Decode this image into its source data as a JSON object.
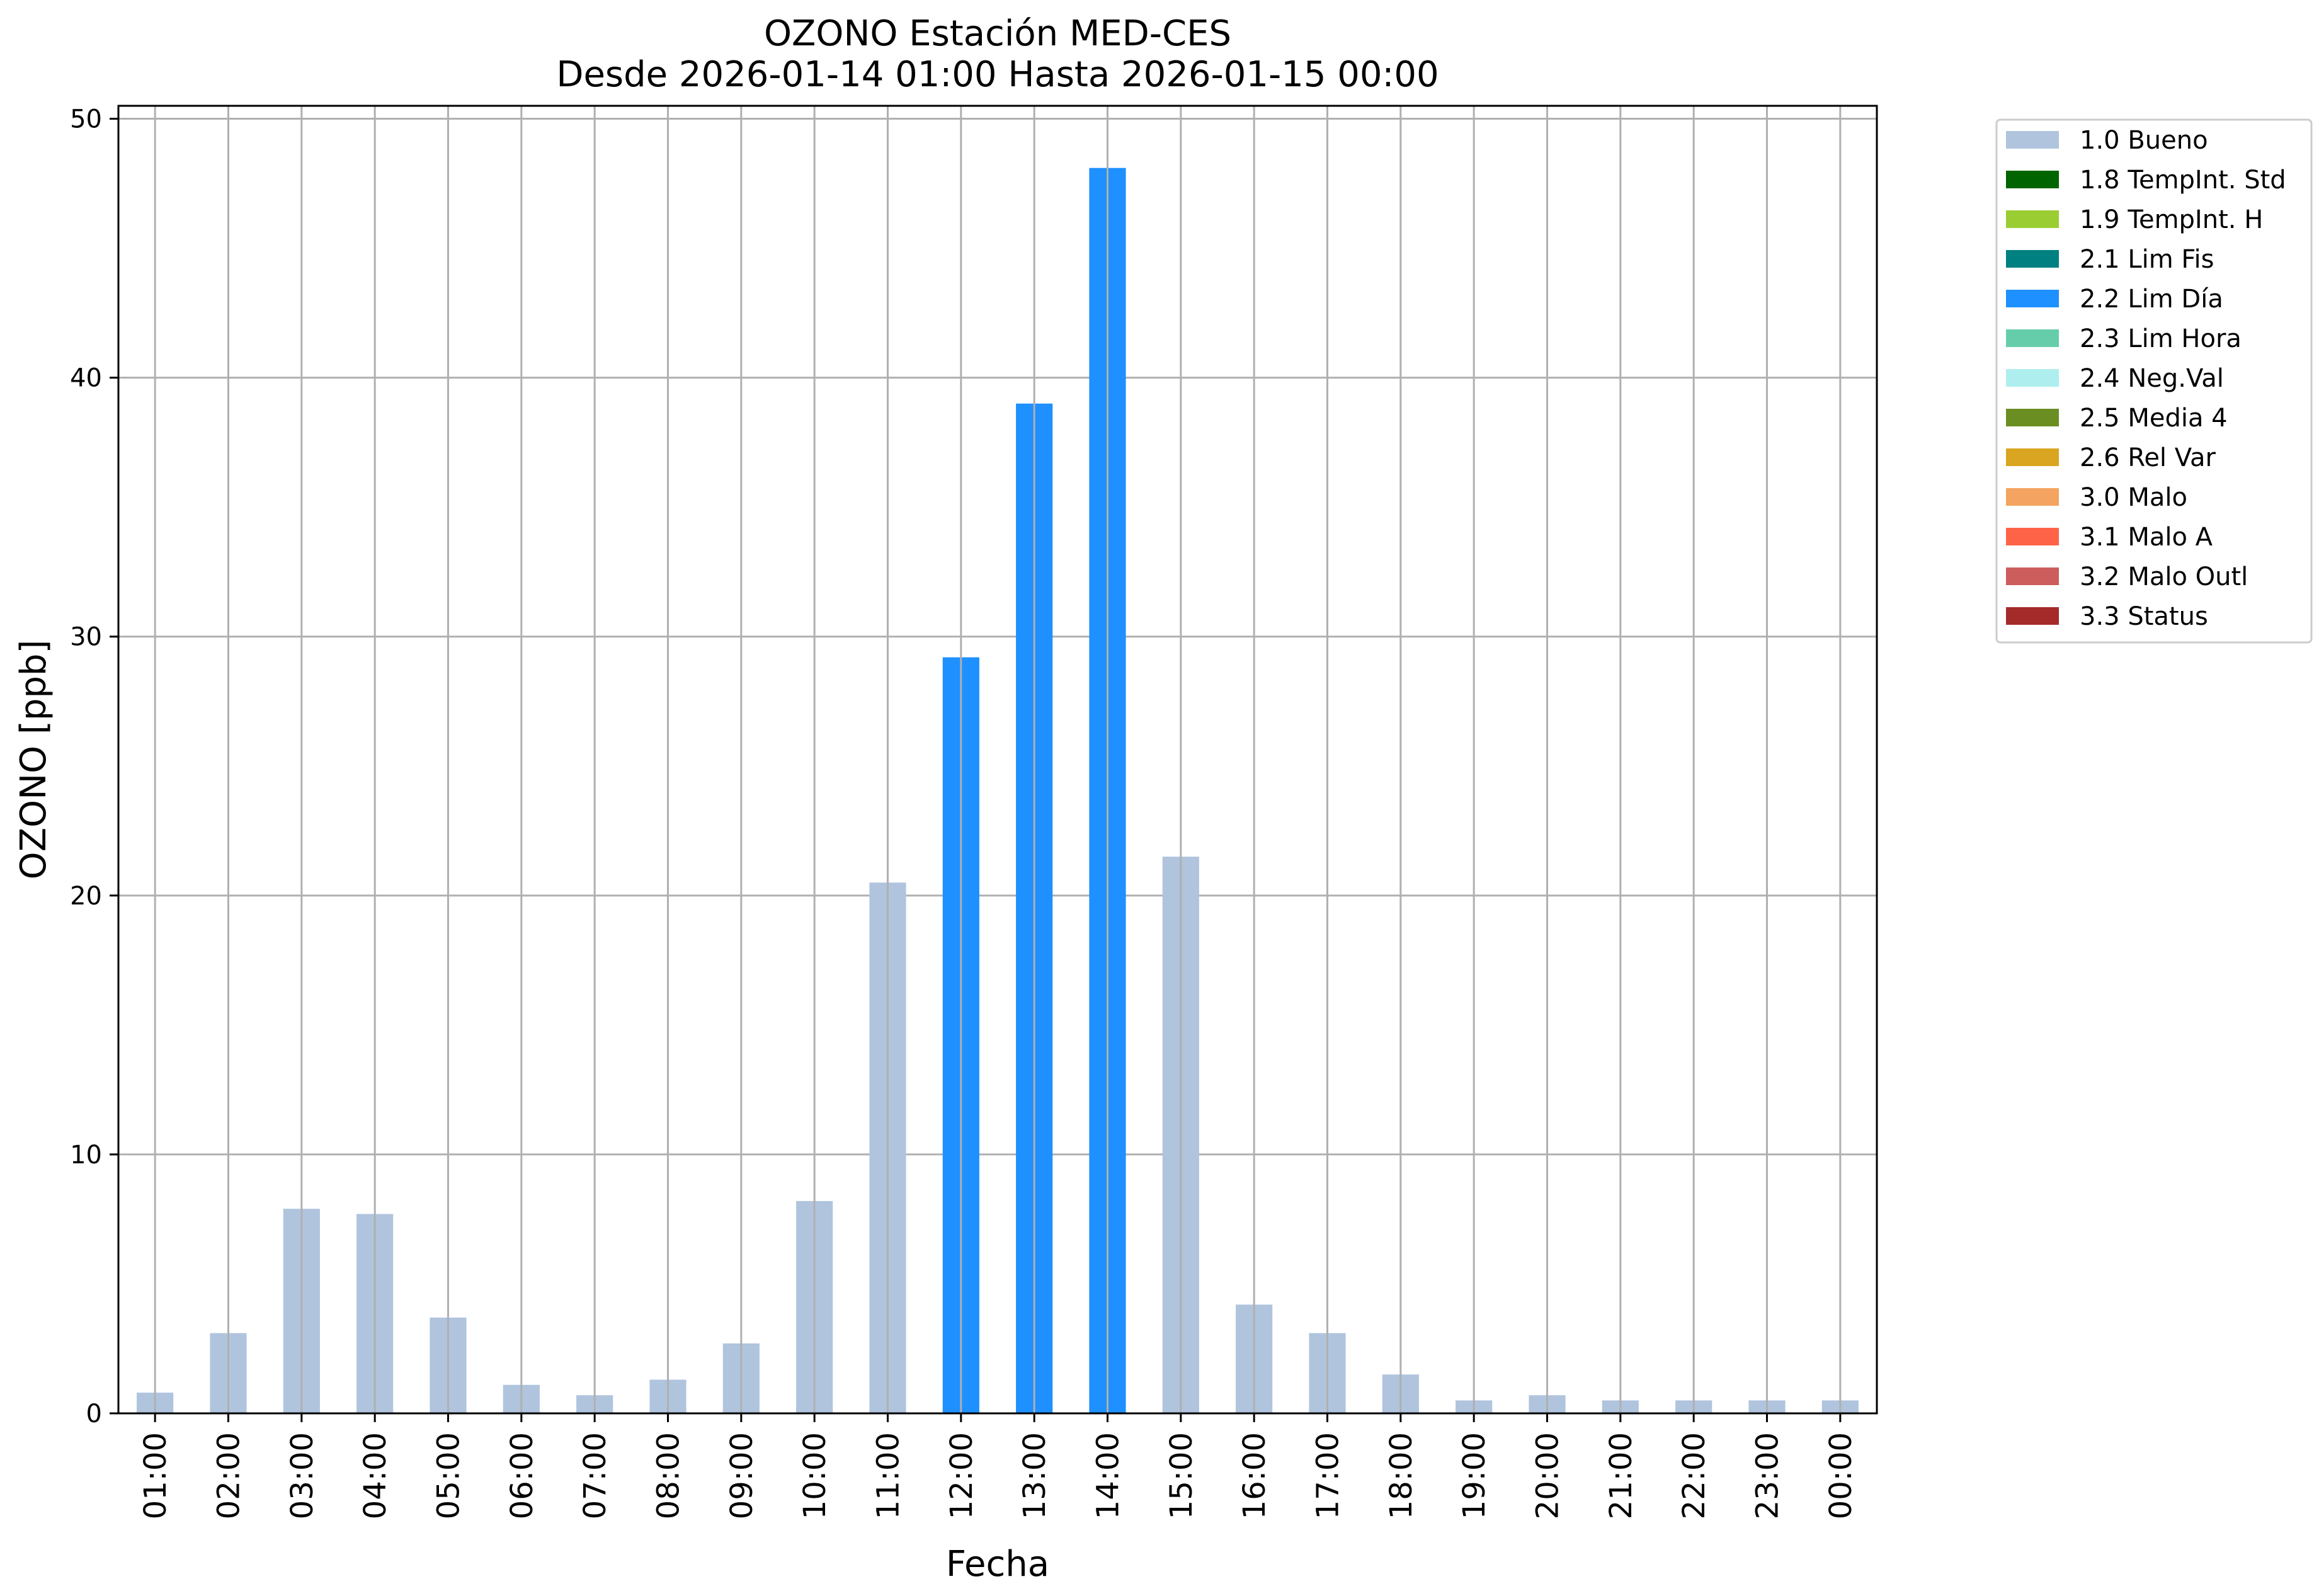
{
  "chart_data": {
    "type": "bar",
    "title": "OZONO Estación MED-CES",
    "subtitle": "Desde 2026-01-14 01:00 Hasta 2026-01-15 00:00",
    "xlabel": "Fecha",
    "ylabel": "OZONO [ppb]",
    "ylim": [
      0,
      50.5
    ],
    "yticks": [
      0,
      10,
      20,
      30,
      40,
      50
    ],
    "grid": true,
    "legend_position": "outside-top-right",
    "categories": [
      "01:00",
      "02:00",
      "03:00",
      "04:00",
      "05:00",
      "06:00",
      "07:00",
      "08:00",
      "09:00",
      "10:00",
      "11:00",
      "12:00",
      "13:00",
      "14:00",
      "15:00",
      "16:00",
      "17:00",
      "18:00",
      "19:00",
      "20:00",
      "21:00",
      "22:00",
      "23:00",
      "00:00"
    ],
    "values": [
      0.8,
      3.1,
      7.9,
      7.7,
      3.7,
      1.1,
      0.7,
      1.3,
      2.7,
      8.2,
      20.5,
      29.2,
      39.0,
      48.1,
      21.5,
      4.2,
      3.1,
      1.5,
      0.5,
      0.7,
      0.5,
      0.5,
      0.5,
      0.5
    ],
    "bar_flags": [
      "1.0 Bueno",
      "1.0 Bueno",
      "1.0 Bueno",
      "1.0 Bueno",
      "1.0 Bueno",
      "1.0 Bueno",
      "1.0 Bueno",
      "1.0 Bueno",
      "1.0 Bueno",
      "1.0 Bueno",
      "1.0 Bueno",
      "2.2 Lim Día",
      "2.2 Lim Día",
      "2.2 Lim Día",
      "1.0 Bueno",
      "1.0 Bueno",
      "1.0 Bueno",
      "1.0 Bueno",
      "1.0 Bueno",
      "1.0 Bueno",
      "1.0 Bueno",
      "1.0 Bueno",
      "1.0 Bueno",
      "1.0 Bueno"
    ],
    "legend": [
      {
        "label": "1.0 Bueno",
        "color": "#b0c4de"
      },
      {
        "label": "1.8 TempInt. Std",
        "color": "#006400"
      },
      {
        "label": "1.9 TempInt. H",
        "color": "#9acd32"
      },
      {
        "label": "2.1 Lim Fis",
        "color": "#008080"
      },
      {
        "label": "2.2 Lim Día",
        "color": "#1e90ff"
      },
      {
        "label": "2.3 Lim Hora",
        "color": "#66cdaa"
      },
      {
        "label": "2.4 Neg.Val",
        "color": "#afeeee"
      },
      {
        "label": "2.5 Media 4",
        "color": "#6b8e23"
      },
      {
        "label": "2.6 Rel Var",
        "color": "#daa520"
      },
      {
        "label": "3.0 Malo",
        "color": "#f4a460"
      },
      {
        "label": "3.1 Malo A",
        "color": "#ff6347"
      },
      {
        "label": "3.2 Malo Outl",
        "color": "#cd5c5c"
      },
      {
        "label": "3.3 Status",
        "color": "#a52a2a"
      }
    ]
  }
}
